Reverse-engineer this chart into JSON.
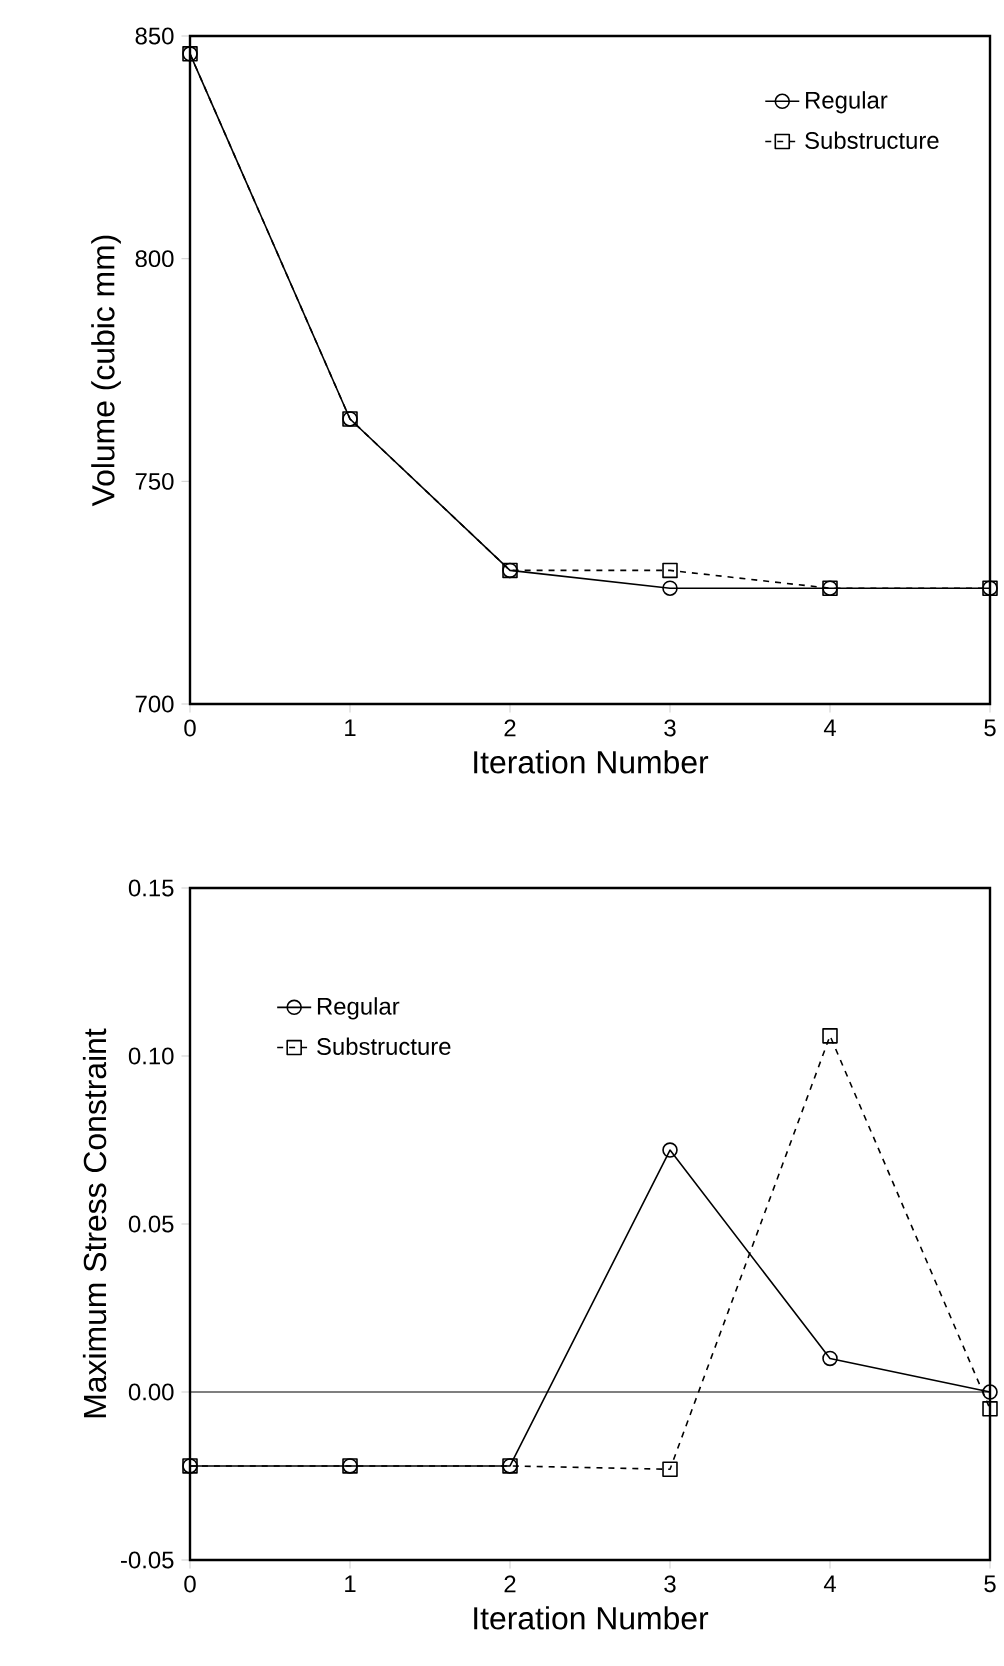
{
  "chart_data": [
    {
      "type": "line",
      "xlabel": "Iteration Number",
      "ylabel": "Volume (cubic mm)",
      "x": [
        0,
        1,
        2,
        3,
        4,
        5
      ],
      "xlim": [
        0,
        5
      ],
      "xticks": [
        0,
        1,
        2,
        3,
        4,
        5
      ],
      "ylim": [
        700,
        850
      ],
      "yticks": [
        700,
        750,
        800,
        850
      ],
      "grid": false,
      "legend": "top right",
      "series": [
        {
          "name": "Regular",
          "color": "#000000",
          "marker": "circle",
          "line_style": "solid",
          "values": [
            846,
            764,
            730,
            726,
            726,
            726
          ]
        },
        {
          "name": "Substructure",
          "color": "#000000",
          "marker": "square",
          "line_style": "dashed",
          "values": [
            846,
            764,
            730,
            730,
            726,
            726
          ]
        }
      ]
    },
    {
      "type": "line",
      "xlabel": "Iteration Number",
      "ylabel": "Maximum Stress Constraint",
      "x": [
        0,
        1,
        2,
        3,
        4,
        5
      ],
      "xlim": [
        0,
        5
      ],
      "xticks": [
        0,
        1,
        2,
        3,
        4,
        5
      ],
      "ylim": [
        -0.05,
        0.15
      ],
      "yticks": [
        -0.05,
        {
          "value": 0,
          "label": "0.00"
        },
        0.05,
        {
          "value": 0.1,
          "label": "0.10"
        },
        0.15
      ],
      "grid": false,
      "legend": "top left",
      "ref_lines": [
        {
          "axis": "y",
          "value": 0,
          "color": "#000000"
        }
      ],
      "series": [
        {
          "name": "Regular",
          "color": "#000000",
          "marker": "circle",
          "line_style": "solid",
          "values": [
            -0.022,
            -0.022,
            -0.022,
            0.072,
            0.01,
            0.0
          ]
        },
        {
          "name": "Substructure",
          "color": "#000000",
          "marker": "square",
          "line_style": "dashed",
          "values": [
            -0.022,
            -0.022,
            -0.022,
            -0.023,
            0.106,
            -0.005
          ]
        }
      ]
    }
  ]
}
